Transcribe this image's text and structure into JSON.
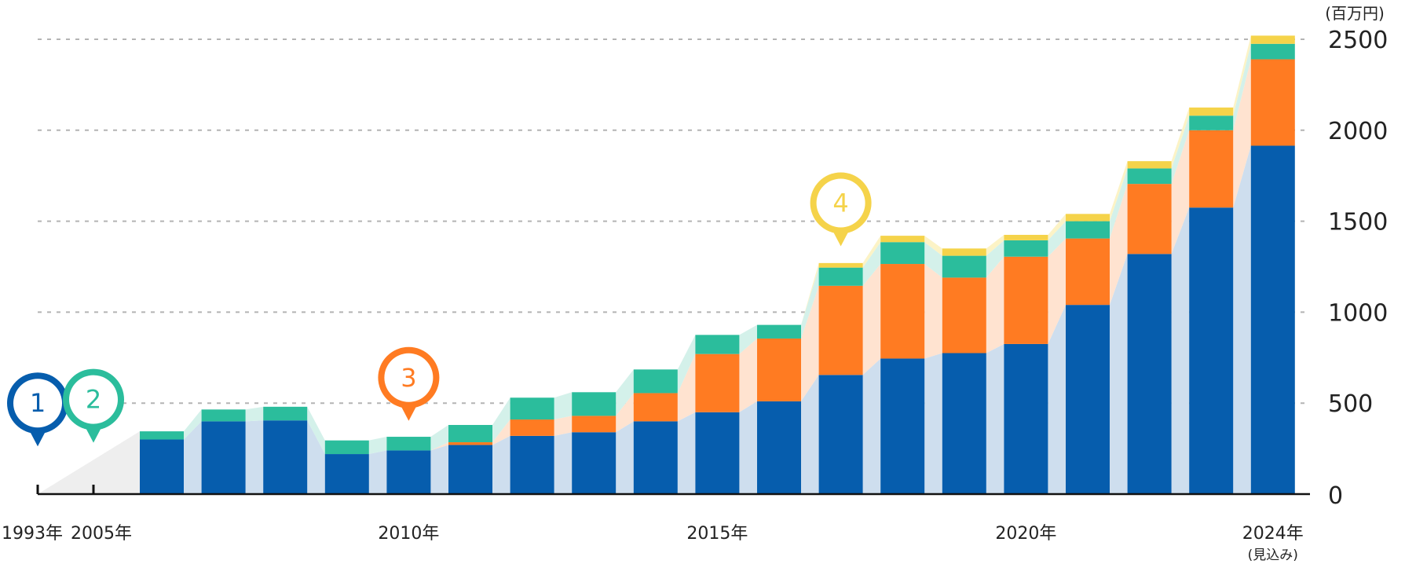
{
  "chart_data": {
    "type": "bar",
    "stacked": true,
    "unit_label": "(百万円)",
    "ylim": [
      0,
      2500
    ],
    "yticks": [
      "0",
      "500",
      "1000",
      "1500",
      "2000",
      "2500"
    ],
    "ytick_values": [
      0,
      500,
      1000,
      1500,
      2000,
      2500
    ],
    "x_tick_labels": [
      {
        "category": "1993",
        "text": "1993年"
      },
      {
        "category": "2005",
        "text": "2005年"
      },
      {
        "category": "2010",
        "text": "2010年"
      },
      {
        "category": "2015",
        "text": "2015年"
      },
      {
        "category": "2020",
        "text": "2020年"
      },
      {
        "category": "2024",
        "text": "2024年",
        "sub": "(見込み)"
      }
    ],
    "timeline_points": [
      "1993",
      "2005"
    ],
    "categories": [
      "2006",
      "2007",
      "2008",
      "2009",
      "2010",
      "2011",
      "2012",
      "2013",
      "2014",
      "2015",
      "2016",
      "2017",
      "2018",
      "2019",
      "2020",
      "2021",
      "2022",
      "2023",
      "2024"
    ],
    "series": [
      {
        "name": "series-blue",
        "color": "#065DAD",
        "band_color": "#CEDEEE",
        "values": [
          300,
          400,
          405,
          220,
          240,
          270,
          320,
          340,
          400,
          450,
          510,
          655,
          745,
          775,
          825,
          1040,
          1320,
          1575,
          1915
        ]
      },
      {
        "name": "series-orange",
        "color": "#FF7B22",
        "band_color": "#FFE3D0",
        "values": [
          0,
          0,
          0,
          0,
          0,
          15,
          90,
          90,
          155,
          320,
          345,
          490,
          520,
          415,
          480,
          365,
          385,
          425,
          475
        ]
      },
      {
        "name": "series-green",
        "color": "#2BBD9C",
        "band_color": "#D4F1EA",
        "values": [
          45,
          65,
          75,
          75,
          75,
          95,
          120,
          130,
          130,
          105,
          75,
          100,
          120,
          120,
          90,
          95,
          85,
          80,
          85
        ]
      },
      {
        "name": "series-yellow",
        "color": "#F5D34A",
        "band_color": "#FCF3C6",
        "values": [
          0,
          0,
          0,
          0,
          0,
          0,
          0,
          0,
          0,
          0,
          0,
          25,
          35,
          40,
          30,
          40,
          40,
          45,
          45
        ]
      }
    ],
    "markers": [
      {
        "label": "1",
        "color": "#065DAD",
        "value": 500
      },
      {
        "label": "2",
        "color": "#2BBD9C",
        "value": 520
      },
      {
        "label": "3",
        "color": "#FF7B22",
        "value": 640
      },
      {
        "label": "4",
        "color": "#F5D34A",
        "value": 1600
      }
    ],
    "grid": true
  }
}
